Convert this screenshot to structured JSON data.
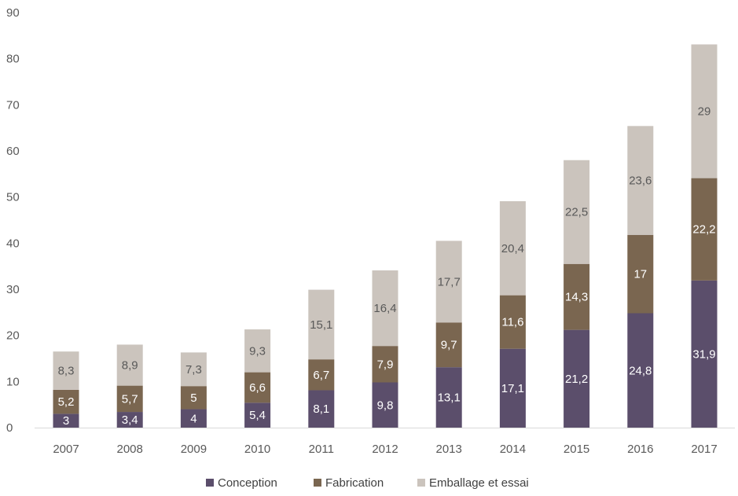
{
  "chart_data": {
    "type": "bar",
    "stacked": true,
    "categories": [
      "2007",
      "2008",
      "2009",
      "2010",
      "2011",
      "2012",
      "2013",
      "2014",
      "2015",
      "2016",
      "2017"
    ],
    "series": [
      {
        "name": "Conception",
        "color": "#5b4e6b",
        "label_color": "#ffffff",
        "values": [
          3,
          3.4,
          4,
          5.4,
          8.1,
          9.8,
          13.1,
          17.1,
          21.2,
          24.8,
          31.9
        ],
        "labels": [
          "3",
          "3,4",
          "4",
          "5,4",
          "8,1",
          "9,8",
          "13,1",
          "17,1",
          "21,2",
          "24,8",
          "31,9"
        ]
      },
      {
        "name": "Fabrication",
        "color": "#7a6650",
        "label_color": "#ffffff",
        "values": [
          5.2,
          5.7,
          5,
          6.6,
          6.7,
          7.9,
          9.7,
          11.6,
          14.3,
          17,
          22.2
        ],
        "labels": [
          "5,2",
          "5,7",
          "5",
          "6,6",
          "6,7",
          "7,9",
          "9,7",
          "11,6",
          "14,3",
          "17",
          "22,2"
        ]
      },
      {
        "name": "Emballage et essai",
        "color": "#cbc4bd",
        "label_color": "#595959",
        "values": [
          8.3,
          8.9,
          7.3,
          9.3,
          15.1,
          16.4,
          17.7,
          20.4,
          22.5,
          23.6,
          29
        ],
        "labels": [
          "8,3",
          "8,9",
          "7,3",
          "9,3",
          "15,1",
          "16,4",
          "17,7",
          "20,4",
          "22,5",
          "23,6",
          "29"
        ]
      }
    ],
    "yticks": [
      "0",
      "10",
      "20",
      "30",
      "40",
      "50",
      "60",
      "70",
      "80",
      "90"
    ],
    "ylim": [
      0,
      90
    ],
    "grid": false,
    "legend": "bottom-center"
  }
}
